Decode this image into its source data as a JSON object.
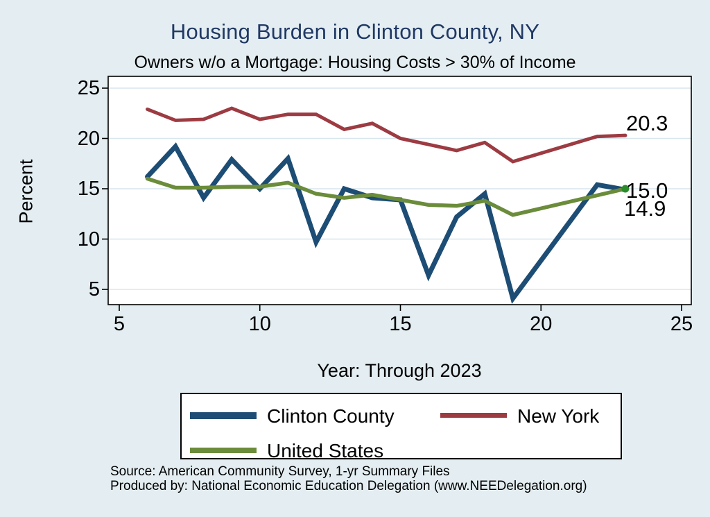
{
  "header": {
    "title": "Housing Burden in Clinton County, NY",
    "subtitle": "Owners w/o a Mortgage: Housing Costs > 30% of Income"
  },
  "chart_data": {
    "type": "line",
    "title": "Housing Burden in Clinton County, NY",
    "subtitle": "Owners w/o a Mortgage: Housing Costs > 30% of Income",
    "xlabel": "Year: Through 2023",
    "ylabel": "Percent",
    "xticks": [
      5,
      10,
      15,
      20,
      25
    ],
    "yticks": [
      5,
      10,
      15,
      20,
      25
    ],
    "xlim": [
      4.6,
      25.4
    ],
    "ylim": [
      3.5,
      26.2
    ],
    "grid": "horizontal",
    "legend_position": "bottom",
    "series": [
      {
        "name": "Clinton County",
        "color": "#1d4d74",
        "width": 7,
        "x": [
          6,
          7,
          8,
          9,
          10,
          11,
          12,
          13,
          14,
          15,
          16,
          17,
          18,
          19,
          22,
          23
        ],
        "y": [
          16.2,
          19.2,
          14.1,
          17.9,
          15.0,
          18.0,
          9.7,
          15.0,
          14.1,
          13.9,
          6.4,
          12.2,
          14.5,
          4.1,
          15.4,
          14.9
        ]
      },
      {
        "name": "New York",
        "color": "#9d3b42",
        "width": 5,
        "x": [
          6,
          7,
          8,
          9,
          10,
          11,
          12,
          13,
          14,
          15,
          16,
          17,
          18,
          19,
          22,
          23
        ],
        "y": [
          22.9,
          21.8,
          21.9,
          23.0,
          21.9,
          22.4,
          22.4,
          20.9,
          21.5,
          20.0,
          19.4,
          18.8,
          19.6,
          17.7,
          20.2,
          20.3
        ]
      },
      {
        "name": "United States",
        "color": "#6b8c3a",
        "width": 5.5,
        "x": [
          6,
          7,
          8,
          9,
          10,
          11,
          12,
          13,
          14,
          15,
          16,
          17,
          18,
          19,
          23
        ],
        "y": [
          16.0,
          15.1,
          15.1,
          15.2,
          15.2,
          15.6,
          14.5,
          14.1,
          14.4,
          13.9,
          13.4,
          13.3,
          13.8,
          12.4,
          15.0
        ],
        "end_marker": {
          "x": 23,
          "y": 15.0,
          "color": "#2a8c2a",
          "radius": 5.5
        }
      }
    ],
    "end_labels": [
      {
        "series": "New York",
        "text": "20.3"
      },
      {
        "series": "United States",
        "text": "15.0"
      },
      {
        "series": "Clinton County",
        "text": "14.9"
      }
    ]
  },
  "legend": {
    "items": [
      {
        "label": "Clinton County",
        "color": "#1d4d74"
      },
      {
        "label": "New York",
        "color": "#9d3b42"
      },
      {
        "label": "United States",
        "color": "#6b8c3a"
      }
    ]
  },
  "footer": {
    "line1": "Source: American Community Survey, 1-yr Summary Files",
    "line2": "Produced by: National Economic Education Delegation (www.NEEDelegation.org)"
  },
  "colors": {
    "background": "#e4eef2",
    "plot_background": "#ffffff",
    "gridline": "#d8e6ee",
    "axis": "#000000",
    "title": "#203864"
  }
}
